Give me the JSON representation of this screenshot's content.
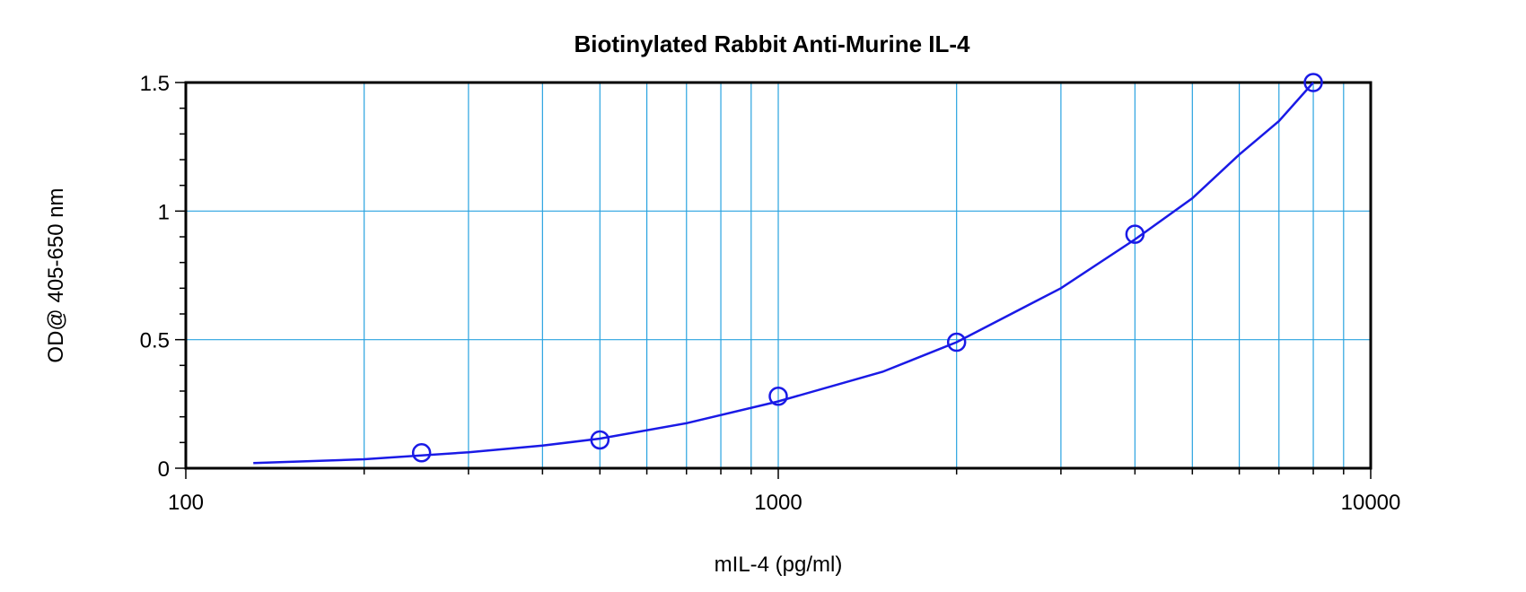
{
  "chart_data": {
    "type": "scatter",
    "title": "Biotinylated Rabbit Anti-Murine IL-4",
    "xlabel": "mIL-4 (pg/ml)",
    "ylabel": "OD@ 405-650 nm",
    "x_scale": "log",
    "xlim": [
      100,
      10000
    ],
    "ylim": [
      0,
      1.5
    ],
    "x_tick_labels": [
      "100",
      "1000",
      "10000"
    ],
    "x_tick_values": [
      100,
      1000,
      10000
    ],
    "y_tick_labels": [
      "0",
      "0.5",
      "1",
      "1.5"
    ],
    "y_tick_values": [
      0,
      0.5,
      1,
      1.5
    ],
    "grid": true,
    "series": [
      {
        "points": [
          {
            "x": 250,
            "y": 0.06
          },
          {
            "x": 500,
            "y": 0.11
          },
          {
            "x": 1000,
            "y": 0.28
          },
          {
            "x": 2000,
            "y": 0.49
          },
          {
            "x": 4000,
            "y": 0.91
          },
          {
            "x": 8000,
            "y": 1.5
          }
        ],
        "fit_curve": [
          {
            "x": 130,
            "y": 0.02
          },
          {
            "x": 200,
            "y": 0.035
          },
          {
            "x": 300,
            "y": 0.062
          },
          {
            "x": 400,
            "y": 0.088
          },
          {
            "x": 500,
            "y": 0.115
          },
          {
            "x": 700,
            "y": 0.175
          },
          {
            "x": 1000,
            "y": 0.26
          },
          {
            "x": 1500,
            "y": 0.375
          },
          {
            "x": 2000,
            "y": 0.49
          },
          {
            "x": 3000,
            "y": 0.7
          },
          {
            "x": 4000,
            "y": 0.89
          },
          {
            "x": 5000,
            "y": 1.05
          },
          {
            "x": 6000,
            "y": 1.22
          },
          {
            "x": 7000,
            "y": 1.35
          },
          {
            "x": 8000,
            "y": 1.5
          }
        ]
      }
    ],
    "colors": {
      "series": "#1a1ae6",
      "grid": "#29a3e0",
      "frame": "#000000"
    }
  }
}
